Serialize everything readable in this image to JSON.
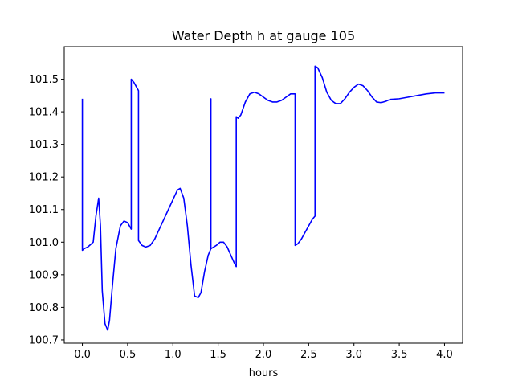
{
  "chart_data": {
    "type": "line",
    "title": "Water Depth h at gauge 105",
    "xlabel": "hours",
    "ylabel": "",
    "xlim": [
      -0.2,
      4.2
    ],
    "ylim": [
      100.69,
      101.6
    ],
    "xticks": [
      0.0,
      0.5,
      1.0,
      1.5,
      2.0,
      2.5,
      3.0,
      3.5,
      4.0
    ],
    "xtick_labels": [
      "0.0",
      "0.5",
      "1.0",
      "1.5",
      "2.0",
      "2.5",
      "3.0",
      "3.5",
      "4.0"
    ],
    "yticks": [
      100.7,
      100.8,
      100.9,
      101.0,
      101.1,
      101.2,
      101.3,
      101.4,
      101.5
    ],
    "ytick_labels": [
      "100.7",
      "100.8",
      "100.9",
      "101.0",
      "101.1",
      "101.2",
      "101.3",
      "101.4",
      "101.5"
    ],
    "grid": false,
    "legend": "none",
    "series": [
      {
        "color": "#0000ff",
        "x": [
          0.0,
          0.0,
          0.02,
          0.06,
          0.12,
          0.15,
          0.18,
          0.2,
          0.22,
          0.25,
          0.28,
          0.3,
          0.33,
          0.37,
          0.42,
          0.46,
          0.5,
          0.54,
          0.54,
          0.57,
          0.6,
          0.62,
          0.62,
          0.66,
          0.7,
          0.75,
          0.8,
          0.85,
          0.9,
          0.95,
          1.0,
          1.05,
          1.08,
          1.12,
          1.16,
          1.2,
          1.24,
          1.28,
          1.31,
          1.35,
          1.39,
          1.42,
          1.42,
          1.42,
          1.45,
          1.48,
          1.52,
          1.56,
          1.6,
          1.64,
          1.68,
          1.7,
          1.7,
          1.72,
          1.75,
          1.8,
          1.85,
          1.9,
          1.95,
          2.0,
          2.05,
          2.1,
          2.15,
          2.2,
          2.25,
          2.3,
          2.35,
          2.35,
          2.38,
          2.42,
          2.46,
          2.5,
          2.54,
          2.57,
          2.57,
          2.6,
          2.65,
          2.7,
          2.75,
          2.8,
          2.85,
          2.9,
          2.95,
          3.0,
          3.05,
          3.1,
          3.15,
          3.2,
          3.25,
          3.3,
          3.35,
          3.4,
          3.5,
          3.6,
          3.7,
          3.8,
          3.9,
          4.0
        ],
        "y": [
          101.44,
          100.975,
          100.98,
          100.985,
          101.0,
          101.08,
          101.135,
          101.05,
          100.85,
          100.75,
          100.73,
          100.76,
          100.86,
          100.98,
          101.05,
          101.065,
          101.06,
          101.04,
          101.5,
          101.49,
          101.475,
          101.465,
          101.005,
          100.99,
          100.985,
          100.99,
          101.01,
          101.04,
          101.07,
          101.1,
          101.13,
          101.16,
          101.165,
          101.135,
          101.05,
          100.93,
          100.835,
          100.83,
          100.845,
          100.91,
          100.96,
          100.98,
          101.44,
          100.98,
          100.985,
          100.99,
          101.0,
          101.0,
          100.985,
          100.96,
          100.935,
          100.925,
          101.385,
          101.38,
          101.39,
          101.43,
          101.455,
          101.46,
          101.455,
          101.445,
          101.435,
          101.43,
          101.43,
          101.435,
          101.445,
          101.455,
          101.455,
          100.99,
          100.995,
          101.01,
          101.03,
          101.05,
          101.07,
          101.08,
          101.54,
          101.535,
          101.505,
          101.46,
          101.435,
          101.425,
          101.425,
          101.44,
          101.46,
          101.475,
          101.485,
          101.48,
          101.465,
          101.445,
          101.43,
          101.428,
          101.432,
          101.438,
          101.44,
          101.445,
          101.45,
          101.455,
          101.458,
          101.458
        ]
      }
    ]
  }
}
